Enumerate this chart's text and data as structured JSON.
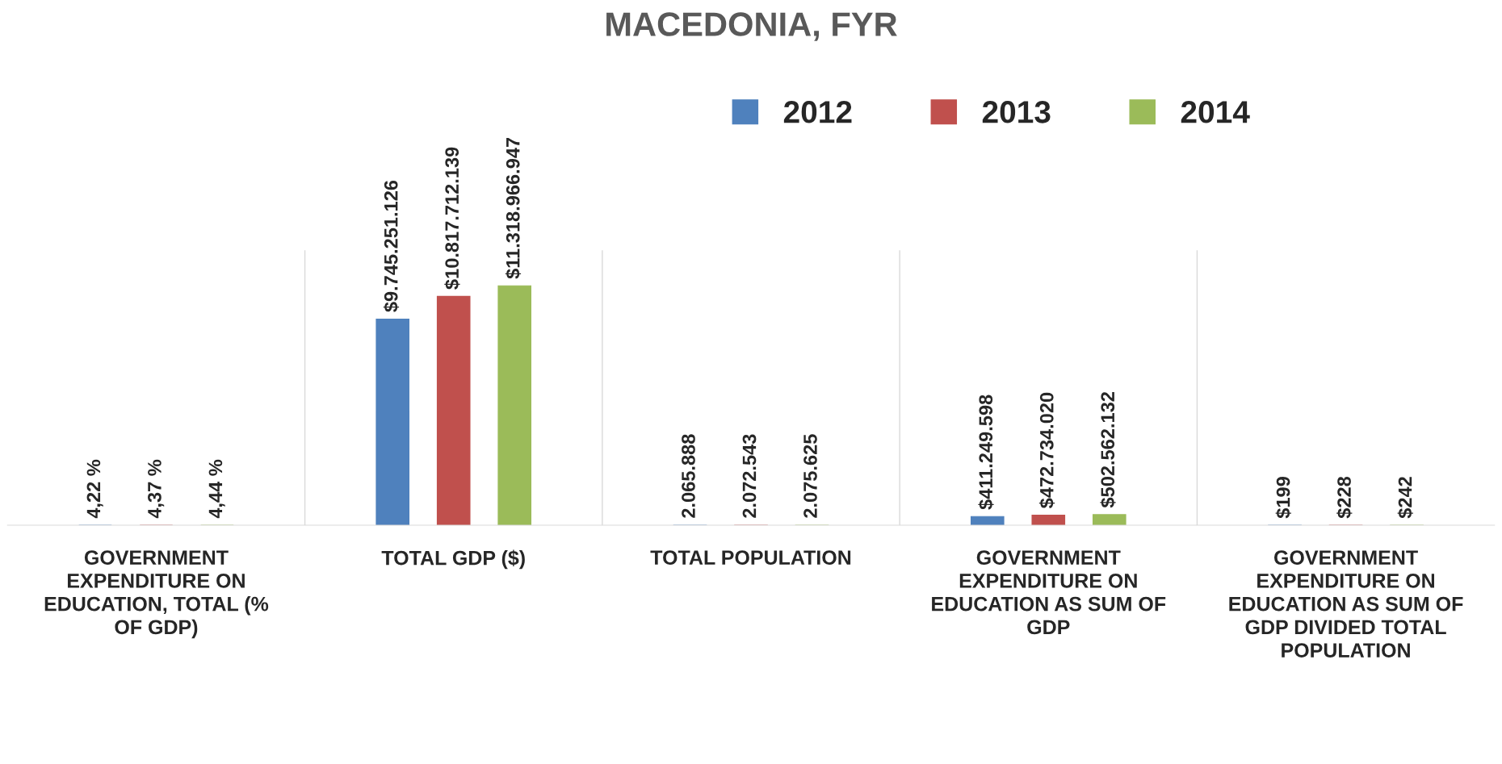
{
  "chart_data": {
    "type": "bar",
    "title": "MACEDONIA, FYR",
    "categories": [
      "GOVERNMENT EXPENDITURE ON EDUCATION, TOTAL (% OF GDP)",
      "TOTAL GDP ($)",
      "TOTAL POPULATION",
      "GOVERNMENT EXPENDITURE ON EDUCATION AS SUM OF GDP",
      "GOVERNMENT EXPENDITURE ON EDUCATION AS SUM OF GDP DIVIDED TOTAL POPULATION"
    ],
    "series": [
      {
        "name": "2012",
        "color": "#4f81bd",
        "values": [
          4.22,
          9745251126,
          2065888,
          411249598,
          199
        ],
        "value_labels": [
          "4,22 %",
          "$9.745.251.126",
          "2.065.888",
          "$411.249.598",
          "$199"
        ]
      },
      {
        "name": "2013",
        "color": "#c0504d",
        "values": [
          4.37,
          10817712139,
          2072543,
          472734020,
          228
        ],
        "value_labels": [
          "4,37 %",
          "$10.817.712.139",
          "2.072.543",
          "$472.734.020",
          "$228"
        ]
      },
      {
        "name": "2014",
        "color": "#9bbb59",
        "values": [
          4.44,
          11318966947,
          2075625,
          502562132,
          242
        ],
        "value_labels": [
          "4,44 %",
          "$11.318.966.947",
          "2.075.625",
          "$502.562.132",
          "$242"
        ]
      }
    ],
    "ylim": [
      0,
      13000000000
    ],
    "tick_labels": "x",
    "grid": "x",
    "legend": "top"
  }
}
